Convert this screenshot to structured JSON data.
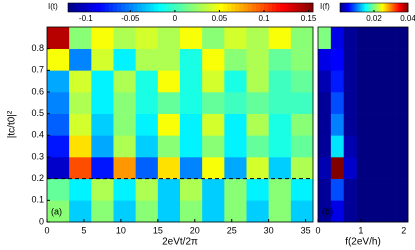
{
  "chart_data": [
    {
      "type": "heatmap",
      "panel_label": "(a)",
      "colorbar_label": "I(t)",
      "x_label": "2eVt/2π",
      "y_label": "|tc/t0|²",
      "xlim": [
        0,
        36
      ],
      "ylim": [
        0,
        0.9
      ],
      "xticks": [
        0,
        5,
        10,
        15,
        20,
        25,
        30,
        35
      ],
      "yticks": [
        0,
        0.1,
        0.2,
        0.3,
        0.4,
        0.5,
        0.6,
        0.7,
        0.8
      ],
      "clim": [
        -0.12,
        0.155
      ],
      "cticks": [
        -0.1,
        -0.05,
        0,
        0.05,
        0.1,
        0.15
      ],
      "hline": 0.2,
      "xbins": [
        0,
        3,
        6,
        9,
        12,
        15,
        18,
        21,
        24,
        27,
        30,
        33,
        36
      ],
      "ybins": [
        0,
        0.1,
        0.2,
        0.3,
        0.4,
        0.5,
        0.6,
        0.7,
        0.8,
        0.9
      ],
      "z": [
        [
          0.02,
          -0.03,
          0.02,
          -0.03,
          0.02,
          -0.03,
          0.02,
          -0.03,
          0.02,
          -0.03,
          0.02,
          -0.03
        ],
        [
          0.01,
          -0.02,
          0.03,
          -0.02,
          0.03,
          -0.03,
          0.03,
          -0.03,
          0.02,
          -0.02,
          0.02,
          -0.02
        ],
        [
          -0.1,
          0.1,
          -0.08,
          0.08,
          -0.06,
          0.06,
          -0.05,
          0.05,
          -0.04,
          0.04,
          -0.03,
          0.03
        ],
        [
          -0.08,
          0.06,
          -0.04,
          0.03,
          -0.03,
          0.02,
          -0.02,
          0.02,
          -0.02,
          0.01,
          -0.01,
          0.01
        ],
        [
          -0.06,
          0.04,
          -0.03,
          0.02,
          -0.02,
          0.05,
          -0.02,
          0.04,
          -0.02,
          0.03,
          -0.01,
          0.02
        ],
        [
          -0.05,
          0.03,
          -0.02,
          0.02,
          -0.01,
          0.01,
          -0.01,
          0.01,
          0,
          0.01,
          0,
          0
        ],
        [
          -0.04,
          0.04,
          -0.02,
          0.03,
          -0.01,
          0.05,
          -0.01,
          0.04,
          -0.01,
          0.03,
          0,
          0.01
        ],
        [
          0.05,
          -0.05,
          0.04,
          -0.02,
          0.03,
          0.03,
          -0.01,
          0.05,
          0.02,
          0.03,
          0.01,
          0.02
        ],
        [
          0.14,
          0.02,
          0.05,
          0.03,
          0.04,
          0.03,
          0.05,
          0.02,
          0.04,
          0.03,
          0.05,
          0.02
        ]
      ]
    },
    {
      "type": "heatmap",
      "panel_label": "(b)",
      "colorbar_label": "I(f)",
      "x_label": "f(2eV/h)",
      "xlim": [
        0,
        2.1
      ],
      "ylim": [
        0,
        0.9
      ],
      "xticks": [
        0,
        1,
        2
      ],
      "clim": [
        0,
        0.04
      ],
      "cticks": [
        0.02,
        0.04
      ],
      "xbins": [
        0,
        0.3,
        0.6,
        0.9,
        1.2,
        1.5,
        1.8,
        2.1
      ],
      "ybins": [
        0,
        0.1,
        0.2,
        0.3,
        0.4,
        0.5,
        0.6,
        0.7,
        0.8,
        0.9
      ],
      "z": [
        [
          0.001,
          0.004,
          0.001,
          0,
          0,
          0,
          0
        ],
        [
          0.001,
          0.008,
          0.001,
          0,
          0,
          0,
          0
        ],
        [
          0.002,
          0.04,
          0.003,
          0,
          0,
          0,
          0
        ],
        [
          0.001,
          0.014,
          0.002,
          0,
          0,
          0,
          0
        ],
        [
          0.001,
          0.01,
          0.001,
          0,
          0,
          0,
          0
        ],
        [
          0.001,
          0.008,
          0.001,
          0,
          0,
          0,
          0
        ],
        [
          0.002,
          0.006,
          0.001,
          0,
          0,
          0,
          0
        ],
        [
          0.004,
          0.005,
          0.001,
          0,
          0,
          0,
          0
        ],
        [
          0.02,
          0.004,
          0.001,
          0,
          0,
          0,
          0
        ]
      ]
    }
  ]
}
